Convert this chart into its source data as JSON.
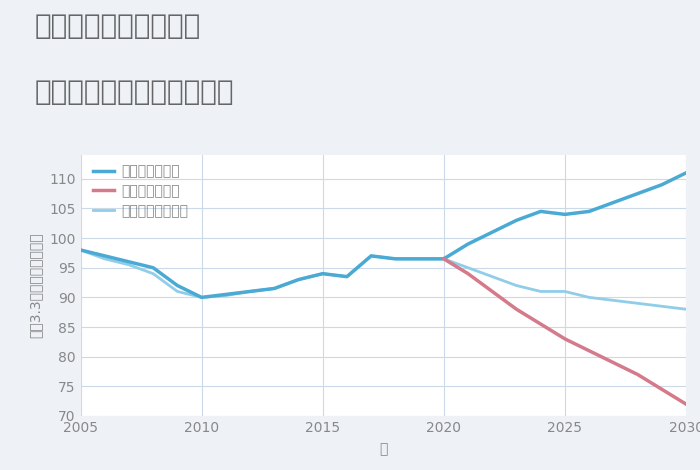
{
  "title_line1": "三重県伊賀市木興町の",
  "title_line2": "中古マンションの価格推移",
  "xlabel": "年",
  "ylabel": "坪（3.3㎡）単価（万円）",
  "background_color": "#eef2f7",
  "plot_bg_color": "#ffffff",
  "ylim": [
    70,
    114
  ],
  "yticks": [
    70,
    75,
    80,
    85,
    90,
    95,
    100,
    105,
    110
  ],
  "xlim": [
    2005,
    2030
  ],
  "xticks": [
    2005,
    2010,
    2015,
    2020,
    2025,
    2030
  ],
  "good_scenario": {
    "label": "グッドシナリオ",
    "color": "#4baad4",
    "linewidth": 2.5,
    "years": [
      2005,
      2006,
      2007,
      2008,
      2009,
      2010,
      2011,
      2012,
      2013,
      2014,
      2015,
      2016,
      2017,
      2018,
      2019,
      2020,
      2021,
      2022,
      2023,
      2024,
      2025,
      2026,
      2027,
      2028,
      2029,
      2030
    ],
    "values": [
      98,
      97,
      96,
      95,
      92,
      90,
      90.5,
      91,
      91.5,
      93,
      94,
      93.5,
      97,
      96.5,
      96.5,
      96.5,
      99,
      101,
      103,
      104.5,
      104,
      104.5,
      106,
      107.5,
      109,
      111
    ]
  },
  "bad_scenario": {
    "label": "バッドシナリオ",
    "color": "#d47a8a",
    "linewidth": 2.5,
    "years": [
      2020,
      2021,
      2022,
      2023,
      2024,
      2025,
      2026,
      2027,
      2028,
      2029,
      2030
    ],
    "values": [
      96.5,
      94,
      91,
      88,
      85.5,
      83,
      81,
      79,
      77,
      74.5,
      72
    ]
  },
  "normal_scenario": {
    "label": "ノーマルシナリオ",
    "color": "#90cde8",
    "linewidth": 2.0,
    "years": [
      2005,
      2006,
      2007,
      2008,
      2009,
      2010,
      2011,
      2012,
      2013,
      2014,
      2015,
      2016,
      2017,
      2018,
      2019,
      2020,
      2021,
      2022,
      2023,
      2024,
      2025,
      2026,
      2027,
      2028,
      2029,
      2030
    ],
    "values": [
      98,
      96.5,
      95.5,
      94,
      91,
      90,
      90.3,
      91,
      91.5,
      93,
      94,
      93.5,
      97,
      96.5,
      96.5,
      96.5,
      95,
      93.5,
      92,
      91,
      91,
      90,
      89.5,
      89,
      88.5,
      88
    ]
  },
  "grid_color": "#ccd9e8",
  "title_color": "#666666",
  "axis_color": "#888888",
  "legend_fontsize": 10,
  "title_fontsize": 20,
  "axis_label_fontsize": 10,
  "tick_fontsize": 10
}
